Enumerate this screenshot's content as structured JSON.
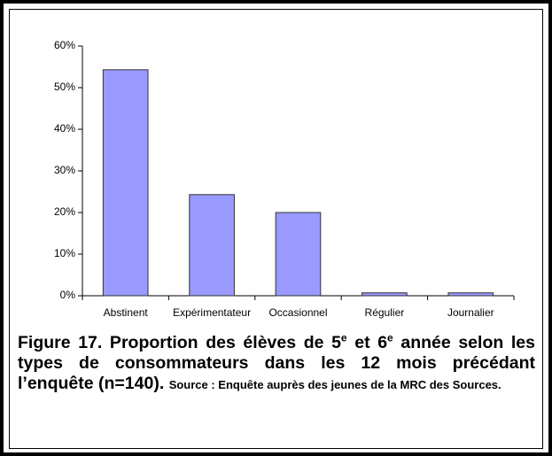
{
  "chart_data": {
    "type": "bar",
    "categories": [
      "Abstinent",
      "Expérimentateur",
      "Occasionnel",
      "Régulier",
      "Journalier"
    ],
    "values": [
      54.3,
      24.3,
      20.0,
      0.7,
      0.7
    ],
    "color": "#9999ff",
    "ylim": [
      0,
      60
    ],
    "yticks": [
      {
        "value": 0,
        "label": "0%"
      },
      {
        "value": 10,
        "label": "10%"
      },
      {
        "value": 20,
        "label": "20%"
      },
      {
        "value": 30,
        "label": "30%"
      },
      {
        "value": 40,
        "label": "40%"
      },
      {
        "value": 50,
        "label": "50%"
      },
      {
        "value": 60,
        "label": "60%"
      }
    ],
    "grid": false
  },
  "caption": {
    "parts": [
      "Figure 17. Proportion des élèves de 5",
      "e",
      " et 6",
      "e",
      " année selon les types de consommateurs dans les 12 mois précédant l’enquête  (n=140).",
      "Source : Enquête auprès des jeunes de la MRC des Sources."
    ]
  }
}
